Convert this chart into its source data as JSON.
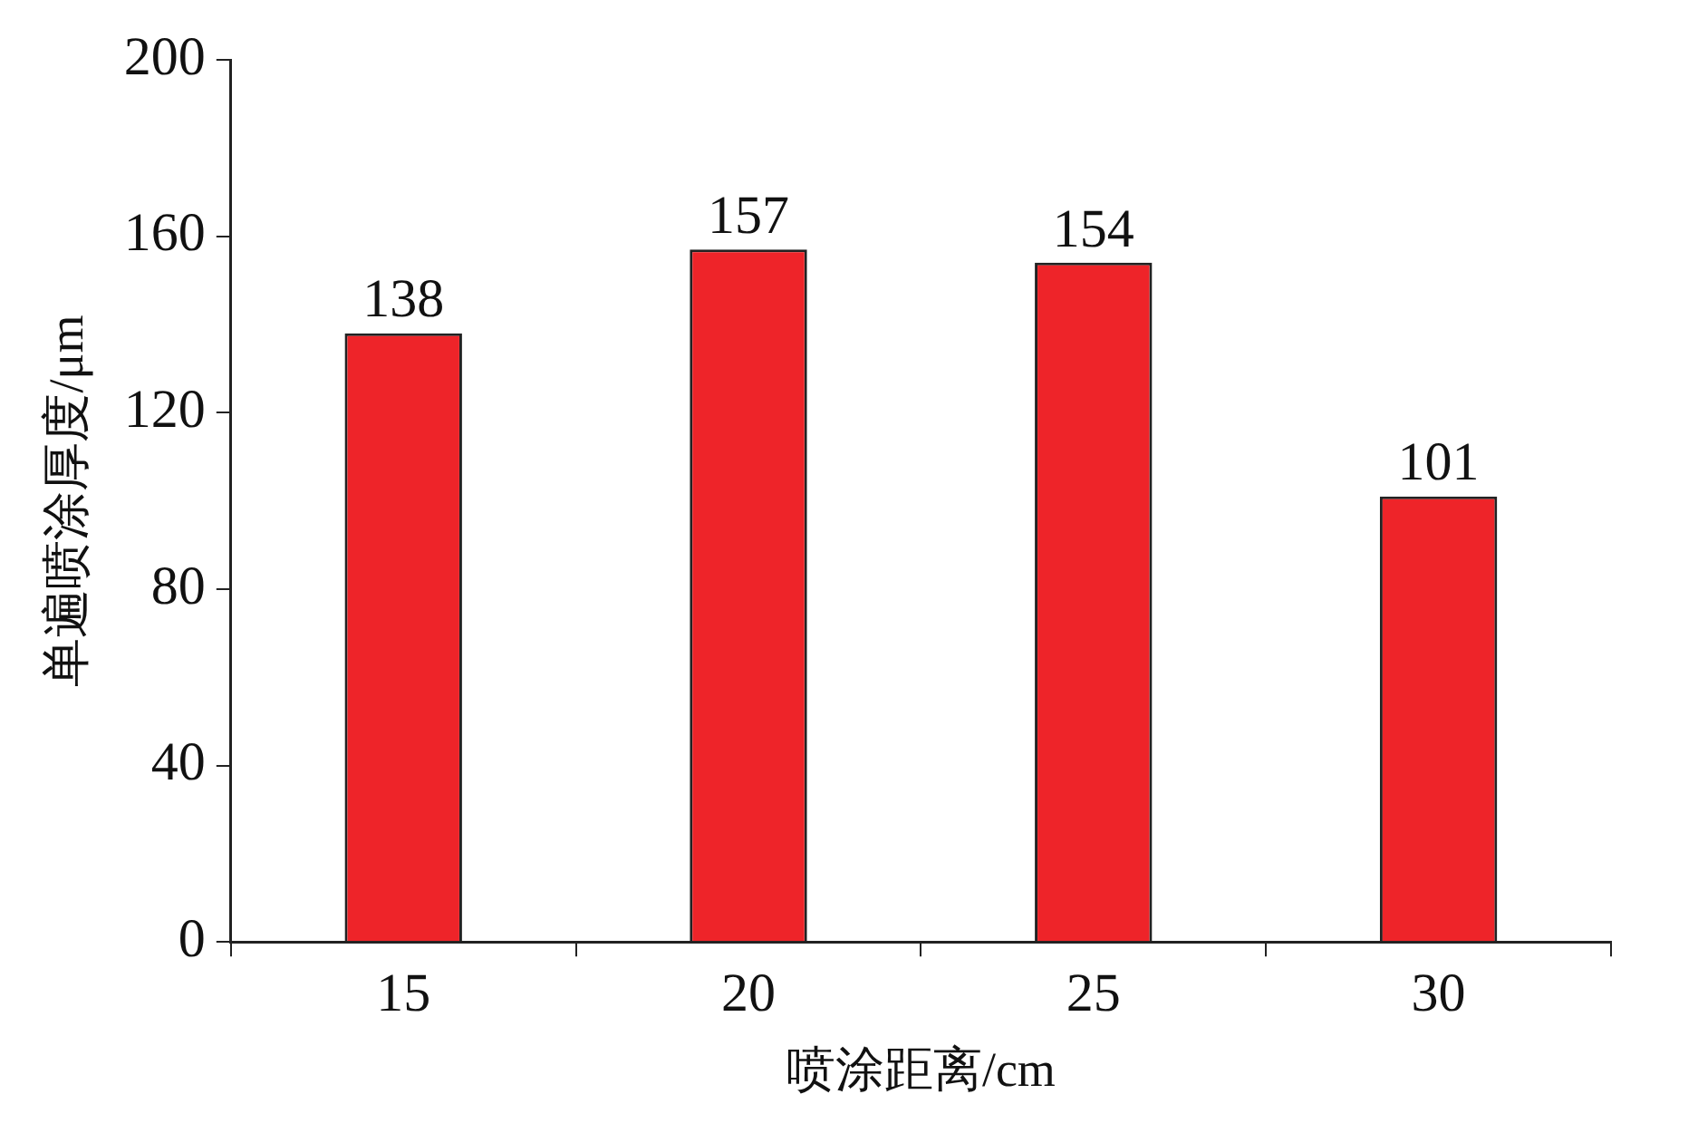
{
  "chart_data": {
    "type": "bar",
    "xlabel": "喷涂距离/cm",
    "ylabel": "单遍喷涂厚度/μm",
    "categories": [
      "15",
      "20",
      "25",
      "30"
    ],
    "values": [
      138,
      157,
      154,
      101
    ],
    "color": "#ee2429",
    "ylim": [
      0,
      200
    ],
    "yticks": [
      0,
      40,
      80,
      120,
      160,
      200
    ],
    "data_labels": true,
    "grid": false,
    "legend": false
  }
}
